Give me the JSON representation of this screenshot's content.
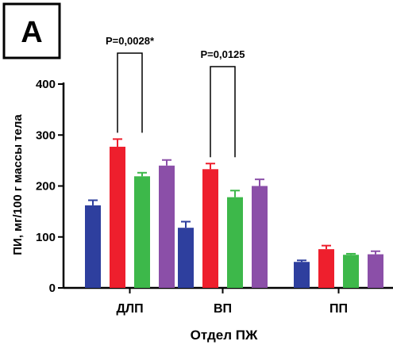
{
  "panel_label": "A",
  "chart_data": {
    "type": "bar",
    "categories": [
      "ДЛП",
      "ВП",
      "ПП"
    ],
    "xlabel": "Отдел ПЖ",
    "ylabel": "ПИ, мг/100 г массы тела",
    "ylim": [
      0,
      400
    ],
    "yticks": [
      0,
      100,
      200,
      300,
      400
    ],
    "grid": false,
    "colors": [
      "#2e3f9e",
      "#ee1f2d",
      "#3db84a",
      "#8b4fa8"
    ],
    "series": [
      {
        "values": [
          162,
          118,
          51
        ],
        "errors": [
          10,
          12,
          3
        ]
      },
      {
        "values": [
          277,
          233,
          76
        ],
        "errors": [
          15,
          11,
          7
        ]
      },
      {
        "values": [
          219,
          178,
          65
        ],
        "errors": [
          7,
          13,
          2
        ]
      },
      {
        "values": [
          240,
          200,
          66
        ],
        "errors": [
          11,
          13,
          6
        ]
      }
    ],
    "annotations": [
      {
        "text": "P=0,0028*",
        "category": "ДЛП",
        "between_series": [
          1,
          2
        ]
      },
      {
        "text": "P=0,0125",
        "category": "ВП",
        "between_series": [
          1,
          2
        ]
      }
    ]
  }
}
